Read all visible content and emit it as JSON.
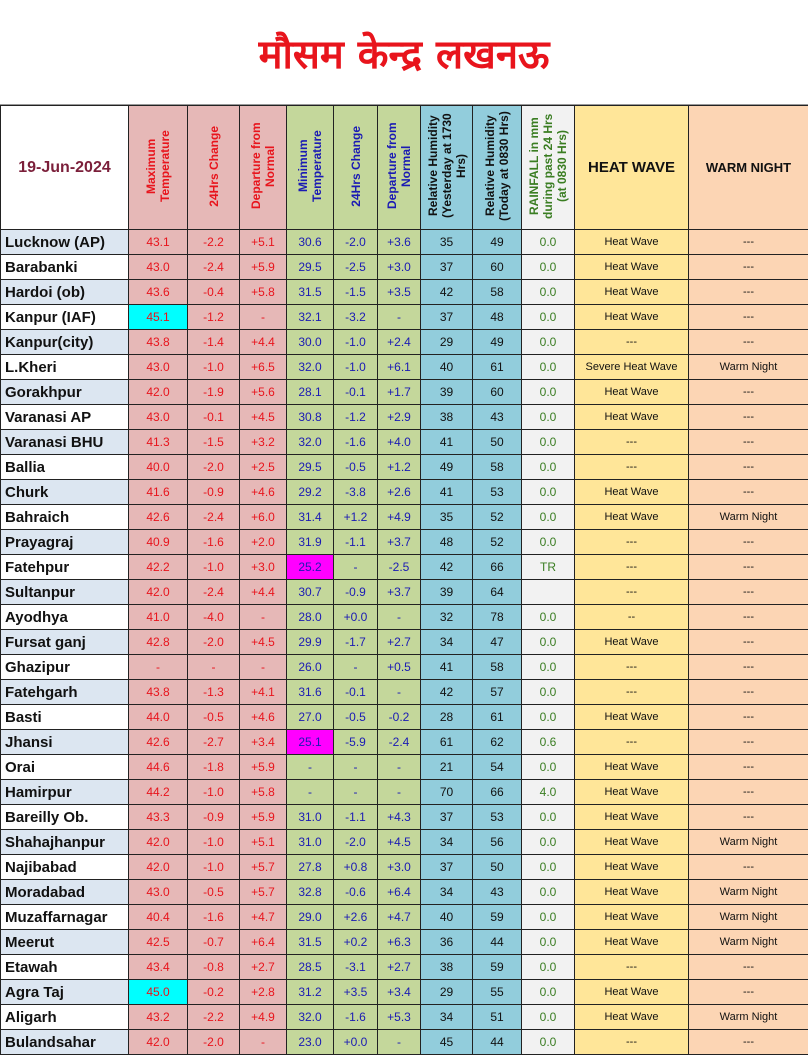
{
  "title": "मौसम केन्द्र लखनऊ",
  "date": "19-Jun-2024",
  "headers": [
    "Maximum Temperature",
    "24Hrs Change",
    "Departure from Normal",
    "Minimum Temperature",
    "24Hrs Change",
    "Departure from Normal",
    "Relative Humidity (Yesterday at 1730 Hrs)",
    "Relative Humidity (Today at 0830 Hrs)",
    "RAINFALL in mm during past 24 Hrs (at 0830 Hrs)",
    "HEAT WAVE",
    "WARM NIGHT"
  ],
  "colors": {
    "highlight_max": "#00ffff",
    "highlight_min": "#ff00ff",
    "max_bg": "#e6b8b7",
    "min_bg": "#c4d79b",
    "rh_bg": "#92cddc",
    "heatwave_bg": "#ffe699",
    "warmnight_bg": "#fcd5b4"
  },
  "rows": [
    [
      "Lucknow (AP)",
      "43.1",
      "-2.2",
      "+5.1",
      "30.6",
      "-2.0",
      "+3.6",
      "35",
      "49",
      "0.0",
      "Heat Wave",
      "---"
    ],
    [
      "Barabanki",
      "43.0",
      "-2.4",
      "+5.9",
      "29.5",
      "-2.5",
      "+3.0",
      "37",
      "60",
      "0.0",
      "Heat Wave",
      "---"
    ],
    [
      "Hardoi (ob)",
      "43.6",
      "-0.4",
      "+5.8",
      "31.5",
      "-1.5",
      "+3.5",
      "42",
      "58",
      "0.0",
      "Heat Wave",
      "---"
    ],
    [
      "Kanpur (IAF)",
      "45.1",
      "-1.2",
      "-",
      "32.1",
      "-3.2",
      "-",
      "37",
      "48",
      "0.0",
      "Heat Wave",
      "---"
    ],
    [
      "Kanpur(city)",
      "43.8",
      "-1.4",
      "+4.4",
      "30.0",
      "-1.0",
      "+2.4",
      "29",
      "49",
      "0.0",
      "---",
      "---"
    ],
    [
      "L.Kheri",
      "43.0",
      "-1.0",
      "+6.5",
      "32.0",
      "-1.0",
      "+6.1",
      "40",
      "61",
      "0.0",
      "Severe Heat Wave",
      "Warm Night"
    ],
    [
      "Gorakhpur",
      "42.0",
      "-1.9",
      "+5.6",
      "28.1",
      "-0.1",
      "+1.7",
      "39",
      "60",
      "0.0",
      "Heat Wave",
      "---"
    ],
    [
      "Varanasi AP",
      "43.0",
      "-0.1",
      "+4.5",
      "30.8",
      "-1.2",
      "+2.9",
      "38",
      "43",
      "0.0",
      "Heat Wave",
      "---"
    ],
    [
      "Varanasi BHU",
      "41.3",
      "-1.5",
      "+3.2",
      "32.0",
      "-1.6",
      "+4.0",
      "41",
      "50",
      "0.0",
      "---",
      "---"
    ],
    [
      "Ballia",
      "40.0",
      "-2.0",
      "+2.5",
      "29.5",
      "-0.5",
      "+1.2",
      "49",
      "58",
      "0.0",
      "---",
      "---"
    ],
    [
      "Churk",
      "41.6",
      "-0.9",
      "+4.6",
      "29.2",
      "-3.8",
      "+2.6",
      "41",
      "53",
      "0.0",
      "Heat Wave",
      "---"
    ],
    [
      "Bahraich",
      "42.6",
      "-2.4",
      "+6.0",
      "31.4",
      "+1.2",
      "+4.9",
      "35",
      "52",
      "0.0",
      "Heat Wave",
      "Warm Night"
    ],
    [
      "Prayagraj",
      "40.9",
      "-1.6",
      "+2.0",
      "31.9",
      "-1.1",
      "+3.7",
      "48",
      "52",
      "0.0",
      "---",
      "---"
    ],
    [
      "Fatehpur",
      "42.2",
      "-1.0",
      "+3.0",
      "25.2",
      "-",
      "-2.5",
      "42",
      "66",
      "TR",
      "---",
      "---"
    ],
    [
      "Sultanpur",
      "42.0",
      "-2.4",
      "+4.4",
      "30.7",
      "-0.9",
      "+3.7",
      "39",
      "64",
      "",
      "---",
      "---"
    ],
    [
      "Ayodhya",
      "41.0",
      "-4.0",
      "-",
      "28.0",
      "+0.0",
      "-",
      "32",
      "78",
      "0.0",
      "--",
      "---"
    ],
    [
      "Fursat ganj",
      "42.8",
      "-2.0",
      "+4.5",
      "29.9",
      "-1.7",
      "+2.7",
      "34",
      "47",
      "0.0",
      "Heat Wave",
      "---"
    ],
    [
      "Ghazipur",
      "-",
      "-",
      "-",
      "26.0",
      "-",
      "+0.5",
      "41",
      "58",
      "0.0",
      "---",
      "---"
    ],
    [
      "Fatehgarh",
      "43.8",
      "-1.3",
      "+4.1",
      "31.6",
      "-0.1",
      "-",
      "42",
      "57",
      "0.0",
      "---",
      "---"
    ],
    [
      "Basti",
      "44.0",
      "-0.5",
      "+4.6",
      "27.0",
      "-0.5",
      "-0.2",
      "28",
      "61",
      "0.0",
      "Heat Wave",
      "---"
    ],
    [
      "Jhansi",
      "42.6",
      "-2.7",
      "+3.4",
      "25.1",
      "-5.9",
      "-2.4",
      "61",
      "62",
      "0.6",
      "---",
      "---"
    ],
    [
      "Orai",
      "44.6",
      "-1.8",
      "+5.9",
      "-",
      "-",
      "-",
      "21",
      "54",
      "0.0",
      "Heat Wave",
      "---"
    ],
    [
      "Hamirpur",
      "44.2",
      "-1.0",
      "+5.8",
      "-",
      "-",
      "-",
      "70",
      "66",
      "4.0",
      "Heat Wave",
      "---"
    ],
    [
      "Bareilly Ob.",
      "43.3",
      "-0.9",
      "+5.9",
      "31.0",
      "-1.1",
      "+4.3",
      "37",
      "53",
      "0.0",
      "Heat Wave",
      "---"
    ],
    [
      "Shahajhanpur",
      "42.0",
      "-1.0",
      "+5.1",
      "31.0",
      "-2.0",
      "+4.5",
      "34",
      "56",
      "0.0",
      "Heat Wave",
      "Warm Night"
    ],
    [
      "Najibabad",
      "42.0",
      "-1.0",
      "+5.7",
      "27.8",
      "+0.8",
      "+3.0",
      "37",
      "50",
      "0.0",
      "Heat Wave",
      "---"
    ],
    [
      "Moradabad",
      "43.0",
      "-0.5",
      "+5.7",
      "32.8",
      "-0.6",
      "+6.4",
      "34",
      "43",
      "0.0",
      "Heat Wave",
      "Warm Night"
    ],
    [
      "Muzaffarnagar",
      "40.4",
      "-1.6",
      "+4.7",
      "29.0",
      "+2.6",
      "+4.7",
      "40",
      "59",
      "0.0",
      "Heat Wave",
      "Warm Night"
    ],
    [
      "Meerut",
      "42.5",
      "-0.7",
      "+6.4",
      "31.5",
      "+0.2",
      "+6.3",
      "36",
      "44",
      "0.0",
      "Heat Wave",
      "Warm Night"
    ],
    [
      "Etawah",
      "43.4",
      "-0.8",
      "+2.7",
      "28.5",
      "-3.1",
      "+2.7",
      "38",
      "59",
      "0.0",
      "---",
      "---"
    ],
    [
      "Agra Taj",
      "45.0",
      "-0.2",
      "+2.8",
      "31.2",
      "+3.5",
      "+3.4",
      "29",
      "55",
      "0.0",
      "Heat Wave",
      "---"
    ],
    [
      "Aligarh",
      "43.2",
      "-2.2",
      "+4.9",
      "32.0",
      "-1.6",
      "+5.3",
      "34",
      "51",
      "0.0",
      "Heat Wave",
      "Warm Night"
    ],
    [
      "Bulandsahar",
      "42.0",
      "-2.0",
      "-",
      "23.0",
      "+0.0",
      "-",
      "45",
      "44",
      "0.0",
      "---",
      "---"
    ]
  ],
  "highlights": {
    "max": [
      "Kanpur (IAF)",
      "Agra Taj"
    ],
    "min": [
      "Fatehpur",
      "Jhansi"
    ]
  }
}
